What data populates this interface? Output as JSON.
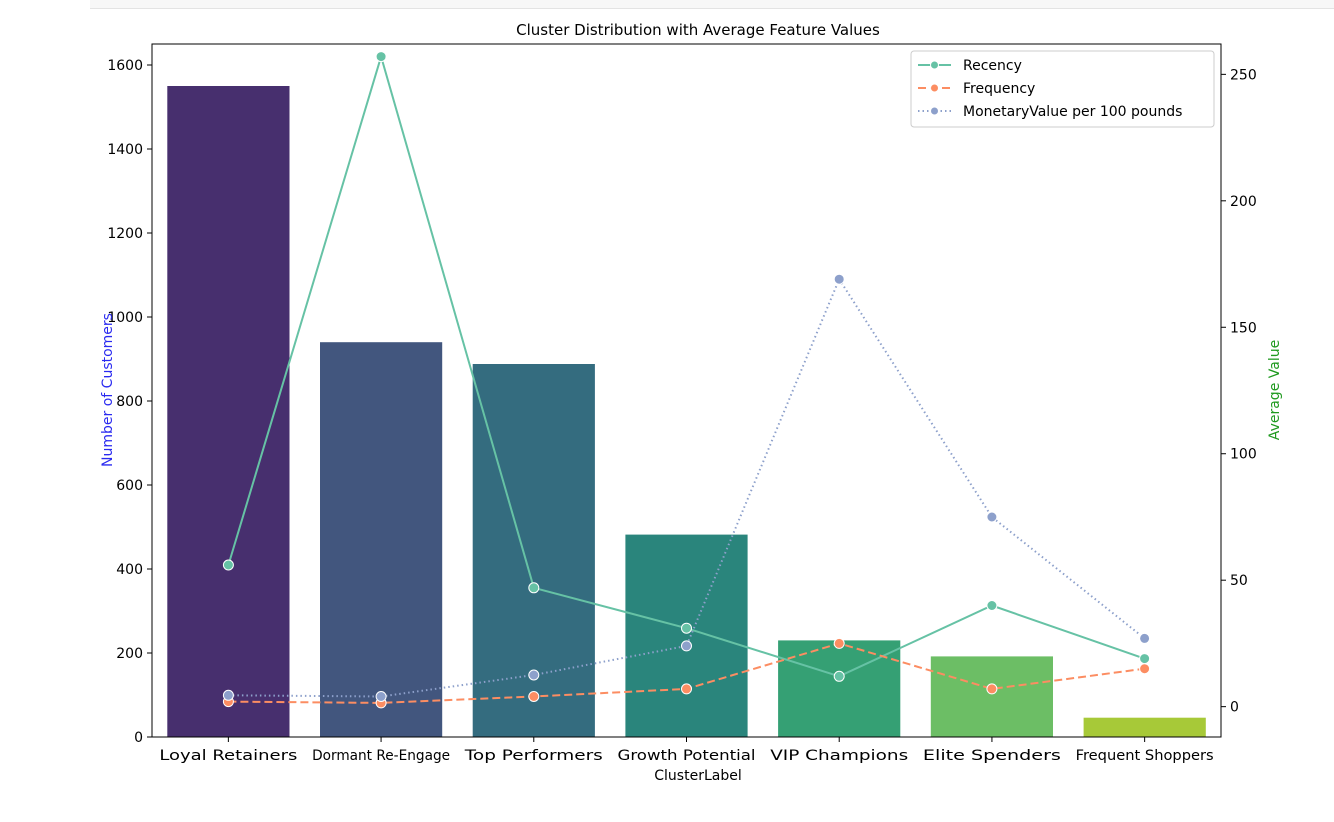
{
  "chart_data": {
    "type": "bar",
    "title": "Cluster Distribution with Average Feature Values",
    "xlabel": "ClusterLabel",
    "ylabel": "Number of Customers",
    "y2label": "Average Value",
    "ylim": [
      0,
      1650
    ],
    "y2lim": [
      -12,
      262
    ],
    "yticks": [
      "0",
      "200",
      "400",
      "600",
      "800",
      "1000",
      "1200",
      "1400",
      "1600"
    ],
    "y2ticks": [
      "0",
      "50",
      "100",
      "150",
      "200",
      "250"
    ],
    "categories": [
      "Loyal Retainers",
      "Dormant Re-Engage",
      "Top Performers",
      "Growth Potential",
      "VIP Champions",
      "Elite Spenders",
      "Frequent Shoppers"
    ],
    "values": [
      1550,
      940,
      888,
      482,
      230,
      192,
      46
    ],
    "bar_colors": [
      "#472f6e",
      "#42567e",
      "#346c7f",
      "#2a857c",
      "#35a074",
      "#6cbe65",
      "#a7c938"
    ],
    "series": [
      {
        "name": "Recency",
        "axis": "right",
        "style": "solid",
        "color": "#66c2a5",
        "values": [
          56,
          257,
          47,
          31,
          12,
          40,
          19
        ]
      },
      {
        "name": "Frequency",
        "axis": "right",
        "style": "dashed",
        "color": "#fc8d62",
        "values": [
          2,
          1.5,
          4,
          7,
          25,
          7,
          15
        ]
      },
      {
        "name": "MonetaryValue per 100 pounds",
        "axis": "right",
        "style": "dotted",
        "color": "#8da0cb",
        "values": [
          4.5,
          4,
          12.5,
          24,
          169,
          75,
          27
        ]
      }
    ],
    "legend_position": "top-right",
    "grid": false
  }
}
